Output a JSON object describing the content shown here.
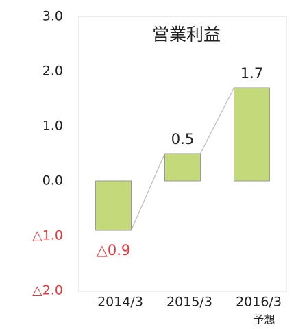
{
  "chart_data": {
    "type": "bar",
    "title": "営業利益",
    "categories": [
      "2014/3",
      "2015/3",
      "2016/3"
    ],
    "category_sublabels": [
      null,
      null,
      "予想"
    ],
    "values": [
      -0.9,
      0.5,
      1.7
    ],
    "value_labels": [
      "△0.9",
      "0.5",
      "1.7"
    ],
    "color": "#c3d97a",
    "edge_color": "#999999",
    "connector_color": "#bbbbbb",
    "negative_color": "#e0393e",
    "ylim": [
      -2,
      3
    ],
    "yticks": [
      {
        "value": 3,
        "label": "3.0"
      },
      {
        "value": 2,
        "label": "2.0"
      },
      {
        "value": 1,
        "label": "1.0"
      },
      {
        "value": 0,
        "label": "0.0"
      },
      {
        "value": -1,
        "label": "△1.0"
      },
      {
        "value": -2,
        "label": "△2.0"
      }
    ],
    "grid": false
  }
}
